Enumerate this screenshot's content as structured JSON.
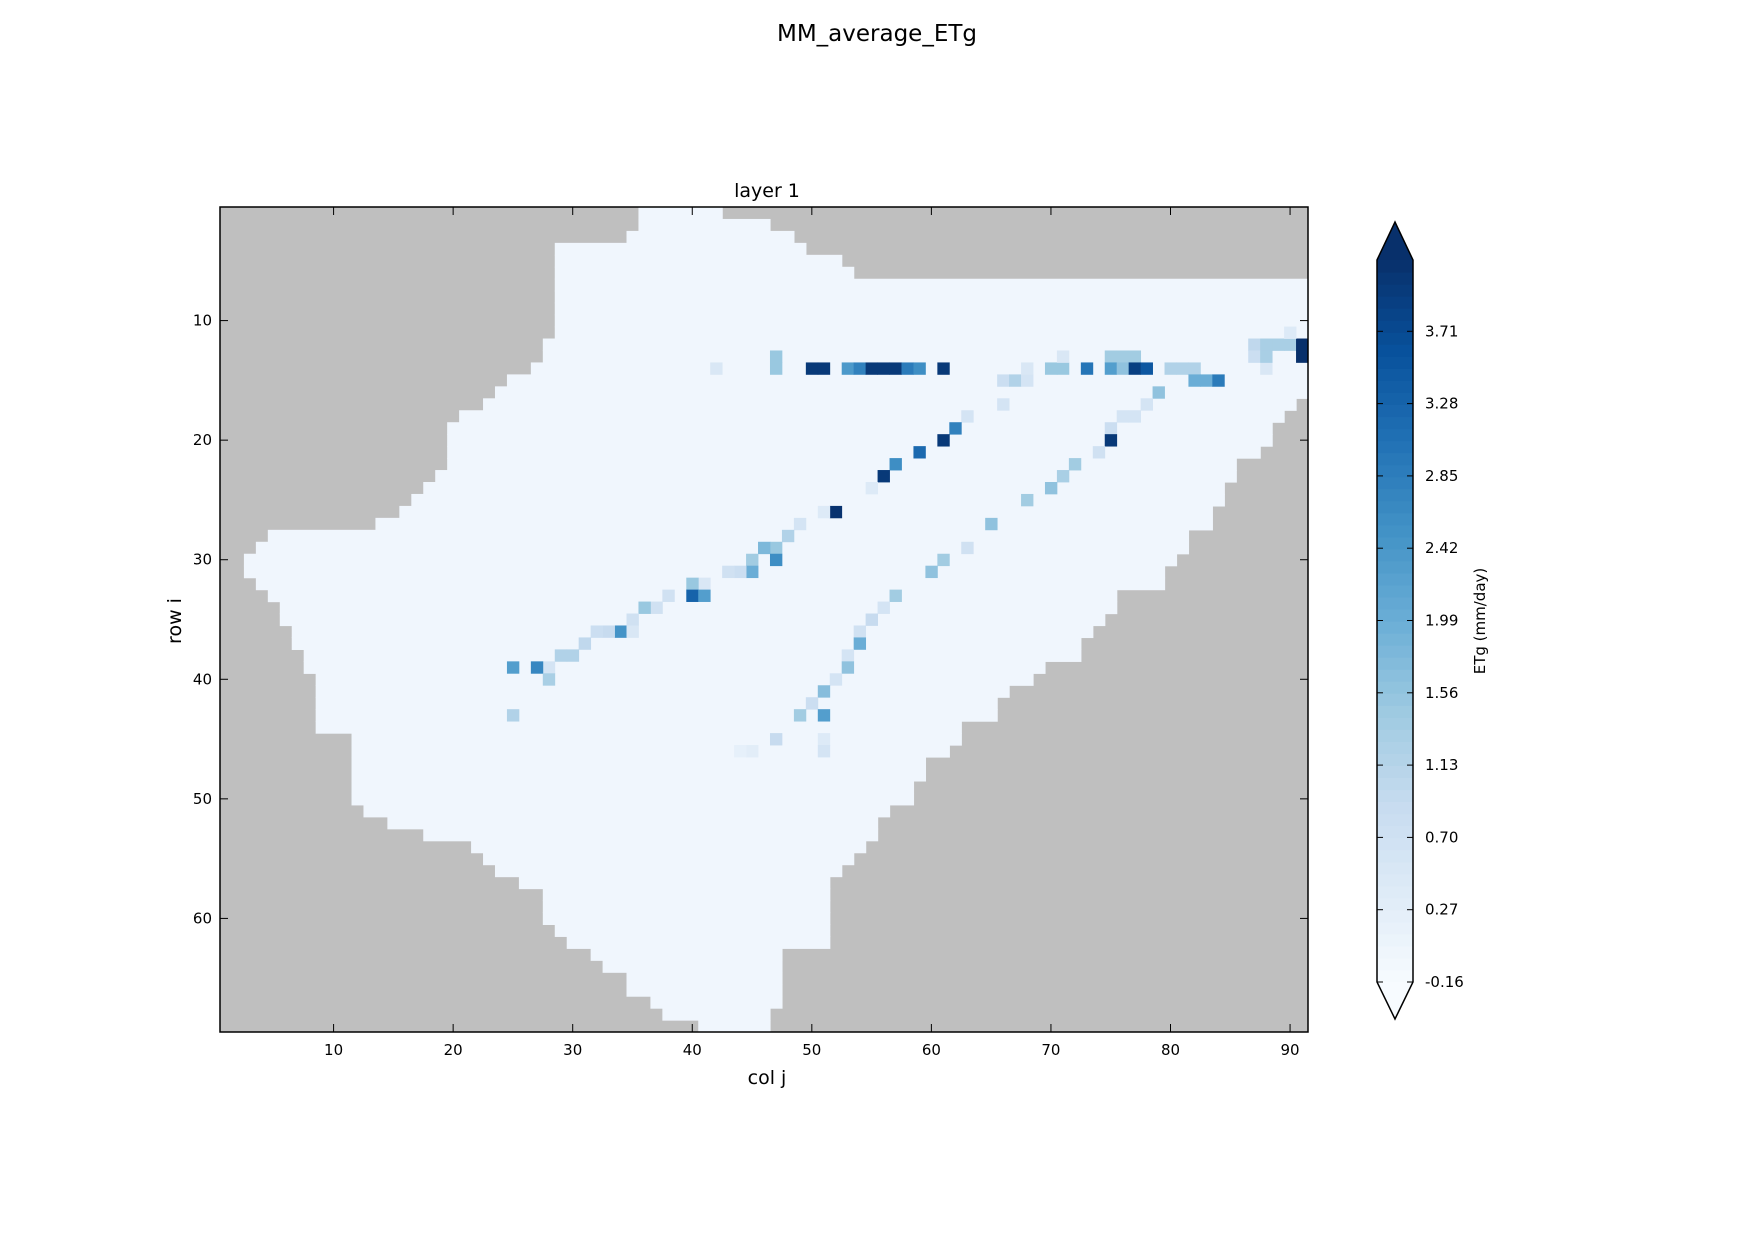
{
  "figure": {
    "title": "MM_average_ETg"
  },
  "chart_data": {
    "type": "heatmap",
    "title": "layer 1",
    "xlabel": "col j",
    "ylabel": "row i",
    "xlim": [
      0.5,
      91.5
    ],
    "ylim": [
      69.5,
      0.5
    ],
    "xticks": [
      10,
      20,
      30,
      40,
      50,
      60,
      70,
      80,
      90
    ],
    "yticks": [
      10,
      20,
      30,
      40,
      50,
      60
    ],
    "grid": false,
    "mask_color": "#bfbfbf",
    "colormap": "Blues",
    "colorbar": {
      "label": "ETg (mm/day)",
      "ticks": [
        "-0.16",
        "0.27",
        "0.70",
        "1.13",
        "1.56",
        "1.99",
        "2.42",
        "2.85",
        "3.28",
        "3.71"
      ],
      "vmin": -0.16,
      "vmax": 4.14,
      "extend": "both",
      "colors": [
        "#f7fbff",
        "#deebf7",
        "#c6dbef",
        "#9ecae1",
        "#6baed6",
        "#4292c6",
        "#2171b5",
        "#08519c",
        "#08306b"
      ]
    },
    "domain_rows": [
      [
        1,
        36,
        42
      ],
      [
        2,
        36,
        46
      ],
      [
        3,
        35,
        48
      ],
      [
        4,
        29,
        49
      ],
      [
        5,
        29,
        52
      ],
      [
        6,
        29,
        53
      ],
      [
        7,
        29,
        91
      ],
      [
        8,
        29,
        91
      ],
      [
        9,
        29,
        91
      ],
      [
        10,
        29,
        91
      ],
      [
        11,
        29,
        91
      ],
      [
        12,
        28,
        91
      ],
      [
        13,
        28,
        91
      ],
      [
        14,
        27,
        91
      ],
      [
        15,
        25,
        91
      ],
      [
        16,
        24,
        91
      ],
      [
        17,
        23,
        90
      ],
      [
        18,
        21,
        89
      ],
      [
        19,
        20,
        88
      ],
      [
        20,
        20,
        88
      ],
      [
        21,
        20,
        87
      ],
      [
        22,
        20,
        85
      ],
      [
        23,
        19,
        85
      ],
      [
        24,
        18,
        84
      ],
      [
        25,
        17,
        84
      ],
      [
        26,
        16,
        83
      ],
      [
        27,
        14,
        83
      ],
      [
        28,
        5,
        81
      ],
      [
        29,
        4,
        81
      ],
      [
        30,
        3,
        80
      ],
      [
        31,
        3,
        79
      ],
      [
        32,
        4,
        79
      ],
      [
        33,
        5,
        75
      ],
      [
        34,
        6,
        75
      ],
      [
        35,
        6,
        74
      ],
      [
        36,
        7,
        73
      ],
      [
        37,
        7,
        72
      ],
      [
        38,
        8,
        72
      ],
      [
        39,
        8,
        69
      ],
      [
        40,
        9,
        68
      ],
      [
        41,
        9,
        66
      ],
      [
        42,
        9,
        65
      ],
      [
        43,
        9,
        65
      ],
      [
        44,
        9,
        62
      ],
      [
        45,
        12,
        62
      ],
      [
        46,
        12,
        61
      ],
      [
        47,
        12,
        59
      ],
      [
        48,
        12,
        59
      ],
      [
        49,
        12,
        58
      ],
      [
        50,
        12,
        58
      ],
      [
        51,
        13,
        56
      ],
      [
        52,
        15,
        55
      ],
      [
        53,
        18,
        55
      ],
      [
        54,
        22,
        54
      ],
      [
        55,
        23,
        53
      ],
      [
        56,
        24,
        52
      ],
      [
        57,
        26,
        51
      ],
      [
        58,
        28,
        51
      ],
      [
        59,
        28,
        51
      ],
      [
        60,
        28,
        51
      ],
      [
        61,
        29,
        51
      ],
      [
        62,
        30,
        51
      ],
      [
        63,
        32,
        47
      ],
      [
        64,
        33,
        47
      ],
      [
        65,
        35,
        47
      ],
      [
        66,
        35,
        47
      ],
      [
        67,
        37,
        47
      ],
      [
        68,
        38,
        46
      ],
      [
        69,
        41,
        46
      ]
    ],
    "nonzero_cells": [
      [
        14,
        42,
        0.5
      ],
      [
        13,
        47,
        1.5
      ],
      [
        14,
        47,
        1.5
      ],
      [
        14,
        50,
        4.0
      ],
      [
        14,
        51,
        4.0
      ],
      [
        14,
        53,
        2.4
      ],
      [
        14,
        54,
        2.8
      ],
      [
        14,
        55,
        4.0
      ],
      [
        14,
        56,
        4.0
      ],
      [
        14,
        57,
        4.0
      ],
      [
        14,
        58,
        2.9
      ],
      [
        14,
        59,
        2.6
      ],
      [
        14,
        61,
        4.0
      ],
      [
        15,
        66,
        0.8
      ],
      [
        15,
        67,
        1.2
      ],
      [
        15,
        68,
        0.6
      ],
      [
        14,
        68,
        0.5
      ],
      [
        14,
        70,
        1.5
      ],
      [
        14,
        71,
        1.5
      ],
      [
        13,
        71,
        0.5
      ],
      [
        14,
        73,
        3.0
      ],
      [
        13,
        75,
        1.4
      ],
      [
        13,
        76,
        1.4
      ],
      [
        13,
        77,
        1.4
      ],
      [
        14,
        75,
        2.3
      ],
      [
        14,
        76,
        1.6
      ],
      [
        14,
        77,
        3.9
      ],
      [
        14,
        78,
        3.5
      ],
      [
        14,
        80,
        1.2
      ],
      [
        14,
        81,
        1.2
      ],
      [
        14,
        82,
        1.2
      ],
      [
        15,
        82,
        2.0
      ],
      [
        15,
        83,
        2.0
      ],
      [
        15,
        84,
        2.9
      ],
      [
        16,
        79,
        1.6
      ],
      [
        17,
        78,
        0.6
      ],
      [
        18,
        76,
        0.6
      ],
      [
        18,
        77,
        0.6
      ],
      [
        19,
        75,
        0.8
      ],
      [
        20,
        75,
        4.0
      ],
      [
        21,
        74,
        0.7
      ],
      [
        22,
        72,
        1.4
      ],
      [
        23,
        71,
        1.3
      ],
      [
        24,
        70,
        1.6
      ],
      [
        25,
        68,
        1.4
      ],
      [
        27,
        65,
        1.6
      ],
      [
        29,
        63,
        0.7
      ],
      [
        30,
        61,
        1.4
      ],
      [
        31,
        60,
        1.6
      ],
      [
        33,
        57,
        1.4
      ],
      [
        34,
        56,
        0.6
      ],
      [
        35,
        55,
        0.9
      ],
      [
        36,
        54,
        0.7
      ],
      [
        37,
        54,
        2.0
      ],
      [
        38,
        53,
        0.6
      ],
      [
        39,
        53,
        1.6
      ],
      [
        40,
        52,
        0.6
      ],
      [
        41,
        51,
        1.7
      ],
      [
        42,
        50,
        0.8
      ],
      [
        43,
        49,
        1.4
      ],
      [
        43,
        51,
        2.3
      ],
      [
        45,
        47,
        0.9
      ],
      [
        45,
        51,
        0.4
      ],
      [
        46,
        51,
        0.6
      ],
      [
        46,
        45,
        0.3
      ],
      [
        12,
        87,
        1.0
      ],
      [
        12,
        88,
        1.3
      ],
      [
        12,
        89,
        1.3
      ],
      [
        12,
        90,
        1.3
      ],
      [
        13,
        87,
        0.8
      ],
      [
        14,
        88,
        0.5
      ],
      [
        13,
        88,
        1.3
      ],
      [
        12,
        91,
        4.2
      ],
      [
        13,
        91,
        4.2
      ],
      [
        11,
        90,
        0.4
      ],
      [
        17,
        66,
        0.6
      ],
      [
        18,
        63,
        0.6
      ],
      [
        19,
        62,
        2.8
      ],
      [
        20,
        61,
        4.0
      ],
      [
        21,
        59,
        3.2
      ],
      [
        22,
        57,
        2.6
      ],
      [
        23,
        56,
        4.0
      ],
      [
        24,
        55,
        0.4
      ],
      [
        26,
        52,
        4.1
      ],
      [
        26,
        51,
        0.4
      ],
      [
        27,
        49,
        0.6
      ],
      [
        28,
        48,
        1.2
      ],
      [
        29,
        47,
        1.5
      ],
      [
        29,
        46,
        1.8
      ],
      [
        30,
        47,
        2.6
      ],
      [
        30,
        45,
        1.4
      ],
      [
        31,
        45,
        2.0
      ],
      [
        31,
        44,
        0.8
      ],
      [
        31,
        43,
        0.7
      ],
      [
        32,
        41,
        0.5
      ],
      [
        32,
        40,
        1.5
      ],
      [
        33,
        40,
        3.3
      ],
      [
        33,
        41,
        2.3
      ],
      [
        33,
        38,
        0.7
      ],
      [
        34,
        37,
        0.7
      ],
      [
        34,
        36,
        1.5
      ],
      [
        35,
        35,
        0.7
      ],
      [
        36,
        34,
        2.5
      ],
      [
        36,
        33,
        0.9
      ],
      [
        36,
        35,
        0.5
      ],
      [
        36,
        32,
        0.8
      ],
      [
        37,
        31,
        1.0
      ],
      [
        38,
        30,
        1.2
      ],
      [
        38,
        29,
        1.2
      ],
      [
        39,
        28,
        0.6
      ],
      [
        39,
        27,
        2.7
      ],
      [
        39,
        25,
        2.3
      ],
      [
        40,
        28,
        1.3
      ],
      [
        43,
        25,
        1.2
      ],
      [
        46,
        44,
        0.2
      ]
    ]
  }
}
